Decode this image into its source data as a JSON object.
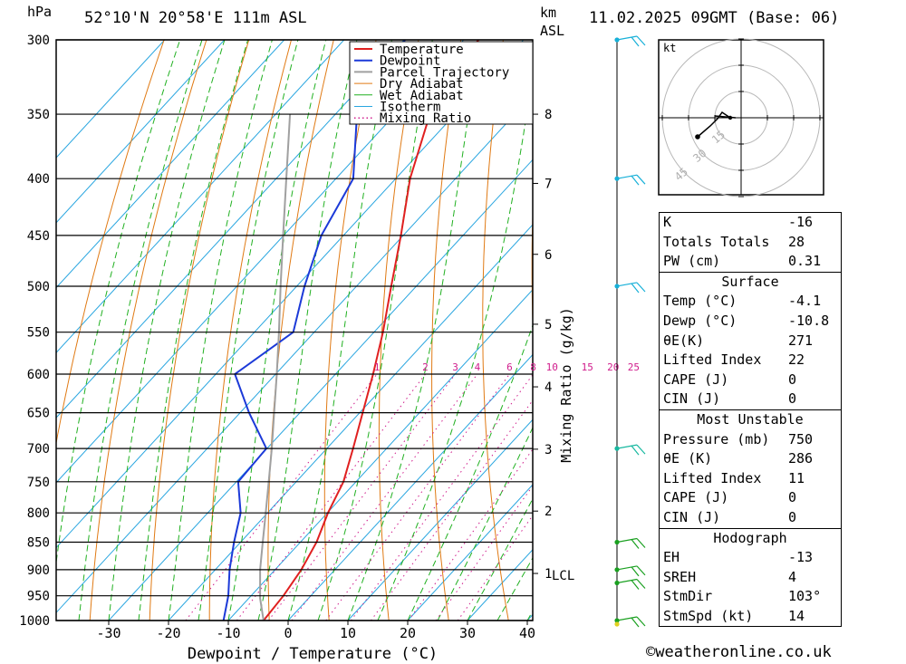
{
  "header": {
    "pressure_unit": "hPa",
    "location": "52°10'N 20°58'E 111m ASL",
    "height_unit_line1": "km",
    "height_unit_line2": "ASL",
    "datetime": "11.02.2025 09GMT (Base: 06)"
  },
  "chart_data": {
    "type": "skew-t",
    "xlabel": "Dewpoint / Temperature (°C)",
    "ylabel_right": "Mixing Ratio (g/kg)",
    "pressure_levels": [
      300,
      350,
      400,
      450,
      500,
      550,
      600,
      650,
      700,
      750,
      800,
      850,
      900,
      950,
      1000
    ],
    "x_ticks": [
      -30,
      -20,
      -10,
      0,
      10,
      20,
      30,
      40
    ],
    "height_km_labels": [
      {
        "label": "8",
        "p": 350
      },
      {
        "label": "7",
        "p": 404
      },
      {
        "label": "6",
        "p": 468
      },
      {
        "label": "5",
        "p": 541
      },
      {
        "label": "4",
        "p": 616
      },
      {
        "label": "3",
        "p": 701
      },
      {
        "label": "2",
        "p": 797
      },
      {
        "label": "1",
        "p": 907
      }
    ],
    "lcl_label": "LCL",
    "mixing_ratio_labels": [
      "1",
      "2",
      "3",
      "4",
      "6",
      "8",
      "10",
      "15",
      "20",
      "25"
    ],
    "legend": [
      "Temperature",
      "Dewpoint",
      "Parcel Trajectory",
      "Dry Adiabat",
      "Wet Adiabat",
      "Isotherm",
      "Mixing Ratio"
    ],
    "series": [
      {
        "name": "Temperature",
        "color": "#e02020",
        "points": [
          [
            1000,
            -4.1
          ],
          [
            950,
            -4.6
          ],
          [
            900,
            -5.6
          ],
          [
            850,
            -7.3
          ],
          [
            800,
            -9.9
          ],
          [
            750,
            -12.1
          ],
          [
            700,
            -15.6
          ],
          [
            650,
            -19.5
          ],
          [
            600,
            -23.7
          ],
          [
            550,
            -28.5
          ],
          [
            500,
            -34.2
          ],
          [
            450,
            -40.4
          ],
          [
            400,
            -47.6
          ],
          [
            350,
            -54.2
          ],
          [
            330,
            -56.9
          ],
          [
            300,
            -57.5
          ]
        ]
      },
      {
        "name": "Dewpoint",
        "color": "#1c3ad8",
        "points": [
          [
            1000,
            -10.8
          ],
          [
            950,
            -13.8
          ],
          [
            900,
            -17.6
          ],
          [
            850,
            -21.1
          ],
          [
            800,
            -24.5
          ],
          [
            750,
            -29.7
          ],
          [
            700,
            -30.1
          ],
          [
            650,
            -38.5
          ],
          [
            600,
            -46.8
          ],
          [
            550,
            -43.5
          ],
          [
            500,
            -48.7
          ],
          [
            450,
            -53.7
          ],
          [
            400,
            -57.1
          ],
          [
            350,
            -66.4
          ],
          [
            300,
            -69.8
          ]
        ]
      },
      {
        "name": "Parcel Trajectory",
        "color": "#a0a0a0",
        "points": [
          [
            1000,
            -4.1
          ],
          [
            955,
            -8.1
          ],
          [
            900,
            -12.5
          ],
          [
            850,
            -16.3
          ],
          [
            800,
            -20.3
          ],
          [
            750,
            -24.6
          ],
          [
            700,
            -29.2
          ],
          [
            650,
            -34.3
          ],
          [
            600,
            -39.8
          ],
          [
            550,
            -45.9
          ],
          [
            500,
            -52.7
          ],
          [
            450,
            -60.1
          ],
          [
            400,
            -68.3
          ],
          [
            350,
            -77.6
          ]
        ]
      }
    ],
    "wind_barbs": [
      {
        "p": 300,
        "color": "#17b0d8"
      },
      {
        "p": 400,
        "color": "#17b0d8"
      },
      {
        "p": 500,
        "color": "#17b0d8"
      },
      {
        "p": 700,
        "color": "#18b8a0"
      },
      {
        "p": 850,
        "color": "#1aa020"
      },
      {
        "p": 900,
        "color": "#1aa020"
      },
      {
        "p": 925,
        "color": "#1aa020"
      },
      {
        "p": 1000,
        "color": "#1aa020"
      }
    ],
    "hodograph": {
      "unit": "kt",
      "ring_labels": [
        "15",
        "30",
        "45"
      ]
    }
  },
  "indices": {
    "general": [
      {
        "label": "K",
        "value": "-16"
      },
      {
        "label": "Totals Totals",
        "value": "28"
      },
      {
        "label": "PW (cm)",
        "value": "0.31"
      }
    ],
    "surface": {
      "title": "Surface",
      "rows": [
        {
          "label": "Temp (°C)",
          "value": "-4.1"
        },
        {
          "label": "Dewp (°C)",
          "value": "-10.8"
        },
        {
          "label": "θE(K)",
          "value": "271"
        },
        {
          "label": "Lifted Index",
          "value": "22"
        },
        {
          "label": "CAPE (J)",
          "value": "0"
        },
        {
          "label": "CIN (J)",
          "value": "0"
        }
      ]
    },
    "most_unstable": {
      "title": "Most Unstable",
      "rows": [
        {
          "label": "Pressure (mb)",
          "value": "750"
        },
        {
          "label": "θE (K)",
          "value": "286"
        },
        {
          "label": "Lifted Index",
          "value": "11"
        },
        {
          "label": "CAPE (J)",
          "value": "0"
        },
        {
          "label": "CIN (J)",
          "value": "0"
        }
      ]
    },
    "hodograph": {
      "title": "Hodograph",
      "rows": [
        {
          "label": "EH",
          "value": "-13"
        },
        {
          "label": "SREH",
          "value": "4"
        },
        {
          "label": "StmDir",
          "value": "103°"
        },
        {
          "label": "StmSpd (kt)",
          "value": "14"
        }
      ]
    }
  },
  "footer": {
    "credit": "©weatheronline.co.uk"
  }
}
